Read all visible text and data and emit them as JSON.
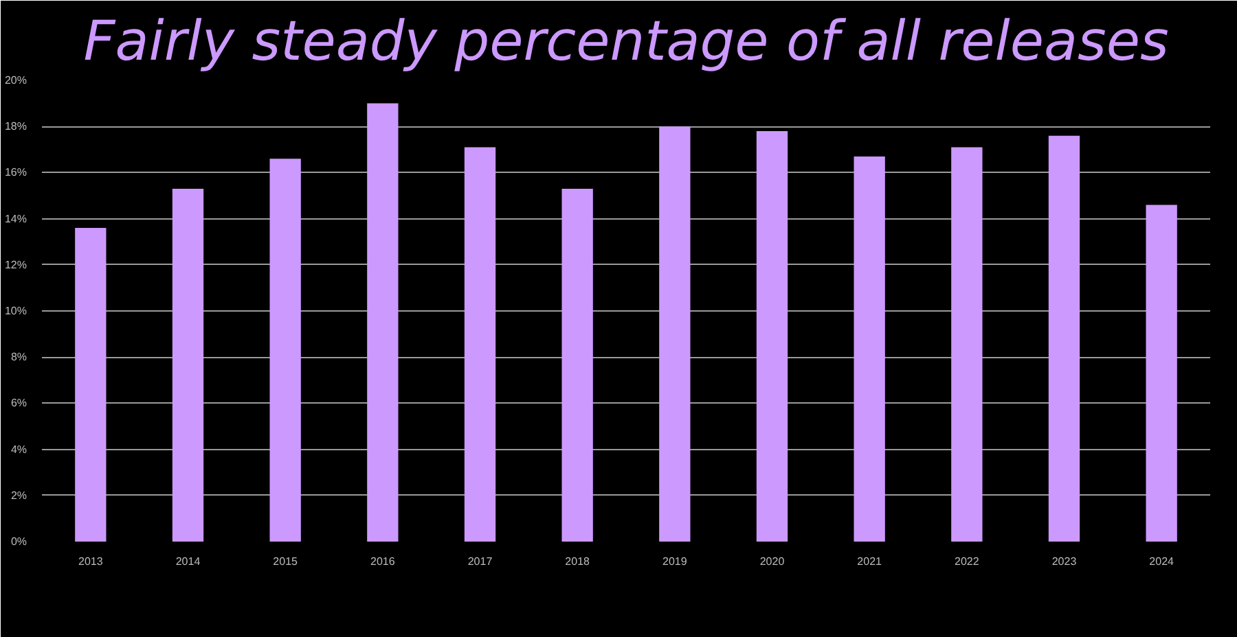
{
  "chart_data": {
    "type": "bar",
    "title": "Fairly steady percentage of all releases",
    "categories": [
      "2013",
      "2014",
      "2015",
      "2016",
      "2017",
      "2018",
      "2019",
      "2020",
      "2021",
      "2022",
      "2023",
      "2024"
    ],
    "values": [
      13.6,
      15.3,
      16.6,
      19.0,
      17.1,
      15.3,
      18.0,
      17.8,
      16.7,
      17.1,
      17.6,
      14.6
    ],
    "color": "#cc99ff",
    "ylim": [
      0,
      20
    ],
    "yticks": [
      {
        "value": 0,
        "label": "0%"
      },
      {
        "value": 2,
        "label": "2%"
      },
      {
        "value": 4,
        "label": "4%"
      },
      {
        "value": 6,
        "label": "6%"
      },
      {
        "value": 8,
        "label": "8%"
      },
      {
        "value": 10,
        "label": "10%"
      },
      {
        "value": 12,
        "label": "12%"
      },
      {
        "value": 14,
        "label": "14%"
      },
      {
        "value": 16,
        "label": "16%"
      },
      {
        "value": 18,
        "label": "18%"
      },
      {
        "value": 20,
        "label": "20%"
      }
    ],
    "grid": "y"
  }
}
